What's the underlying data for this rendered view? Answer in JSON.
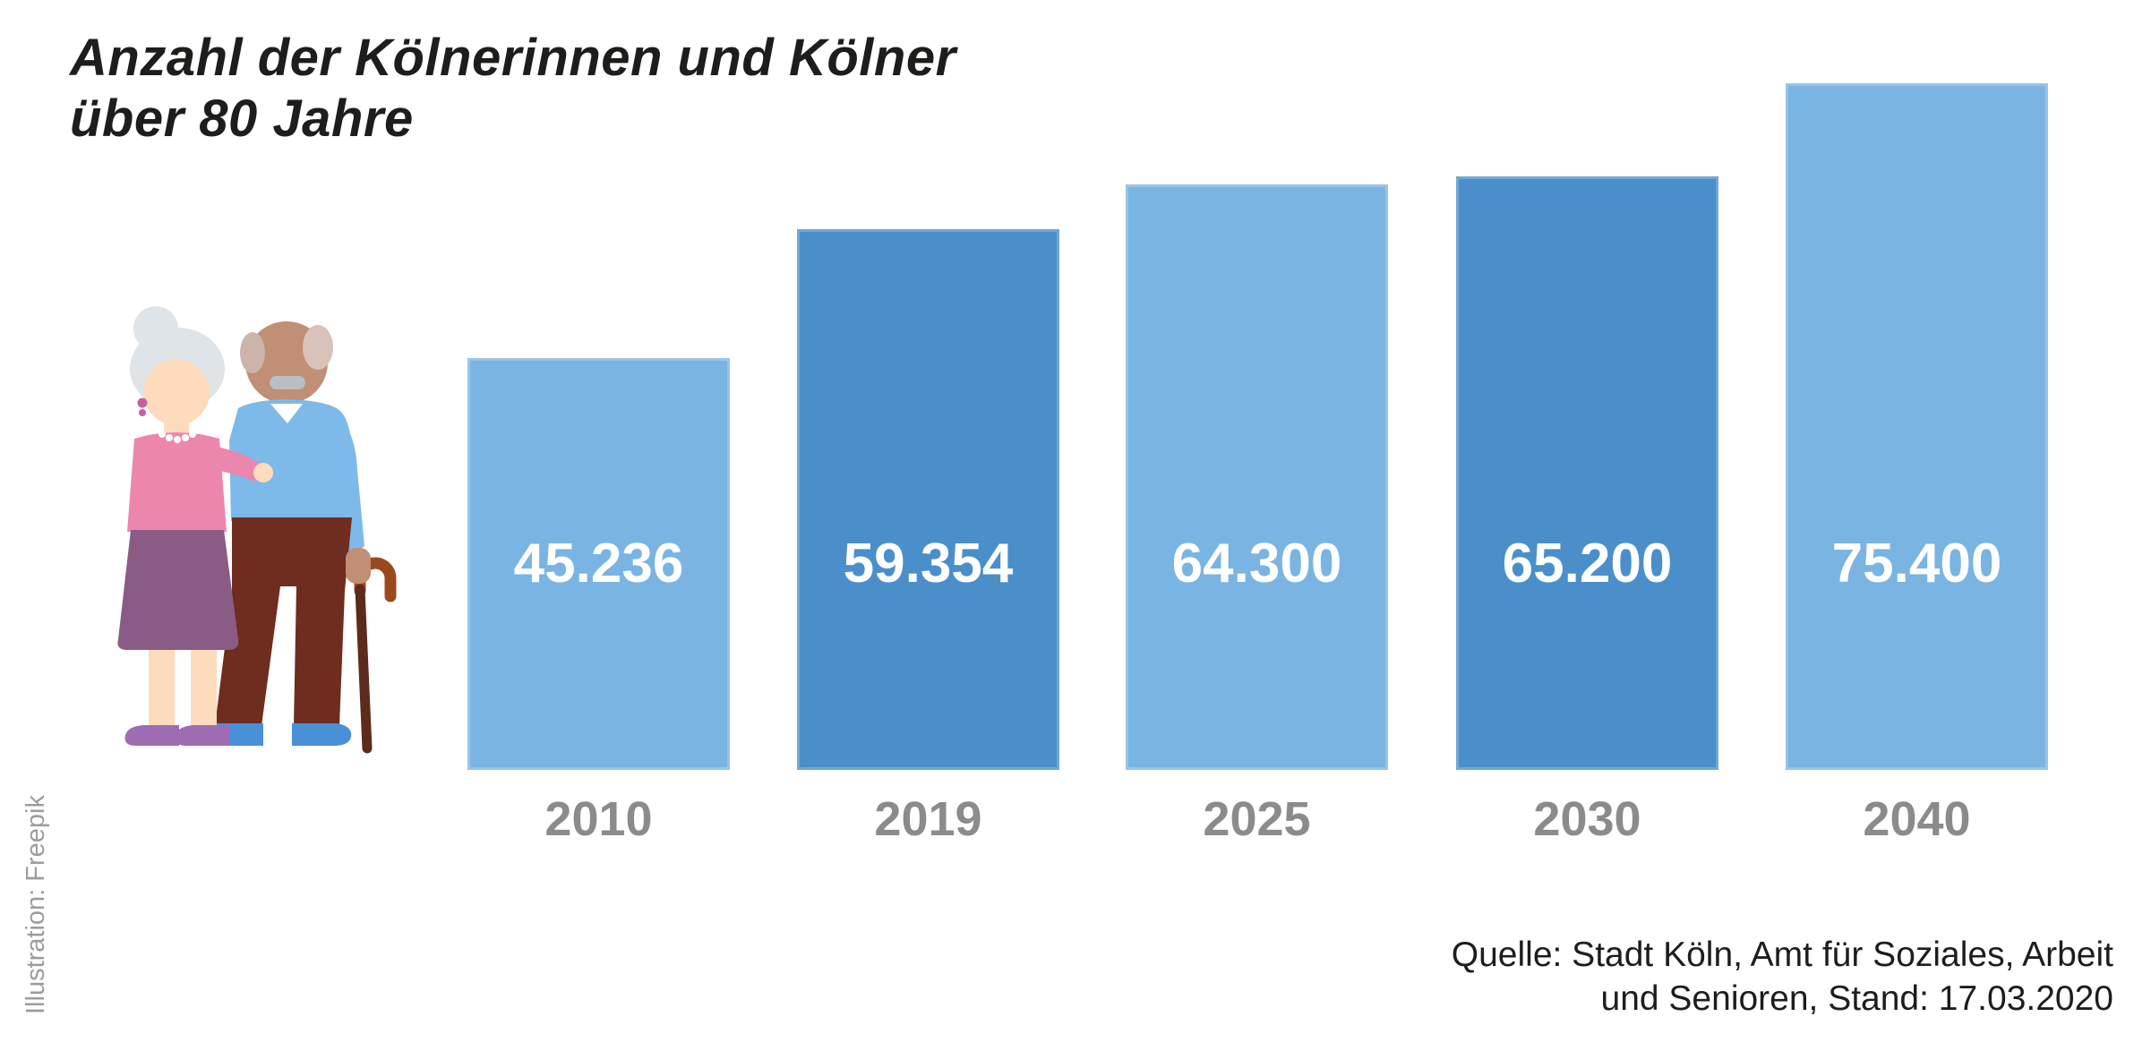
{
  "title": {
    "line1": "Anzahl der Kölnerinnen und Kölner",
    "line2": "über 80 Jahre"
  },
  "chart_data": {
    "type": "bar",
    "title": "Anzahl der Kölnerinnen und Kölner über 80 Jahre",
    "categories": [
      "2010",
      "2019",
      "2025",
      "2030",
      "2040"
    ],
    "values": [
      45236,
      59354,
      64300,
      65200,
      75400
    ],
    "value_labels": [
      "45.236",
      "59.354",
      "64.300",
      "65.200",
      "75.400"
    ],
    "bar_palette": [
      "light",
      "dark",
      "light",
      "dark",
      "light"
    ],
    "ylim": [
      0,
      75400
    ],
    "grid": false,
    "legend": false,
    "value_label_position": "inside-center",
    "xlabel": "",
    "ylabel": ""
  },
  "source": {
    "line1": "Quelle: Stadt Köln, Amt für Soziales, Arbeit",
    "line2": "und Senioren, Stand: 17.03.2020"
  },
  "credit": "Illustration: Freepik",
  "illustration": "elderly-couple",
  "colors": {
    "bar_light_blue": "#7ab4e2",
    "bar_dark_blue": "#4a8fca",
    "value_text": "#ffffff",
    "year_text": "#8b8b8b",
    "title_text": "#1d1d1b",
    "source_text": "#1d1d1b",
    "credit_text": "#9c9c9c",
    "background": "#ffffff"
  }
}
